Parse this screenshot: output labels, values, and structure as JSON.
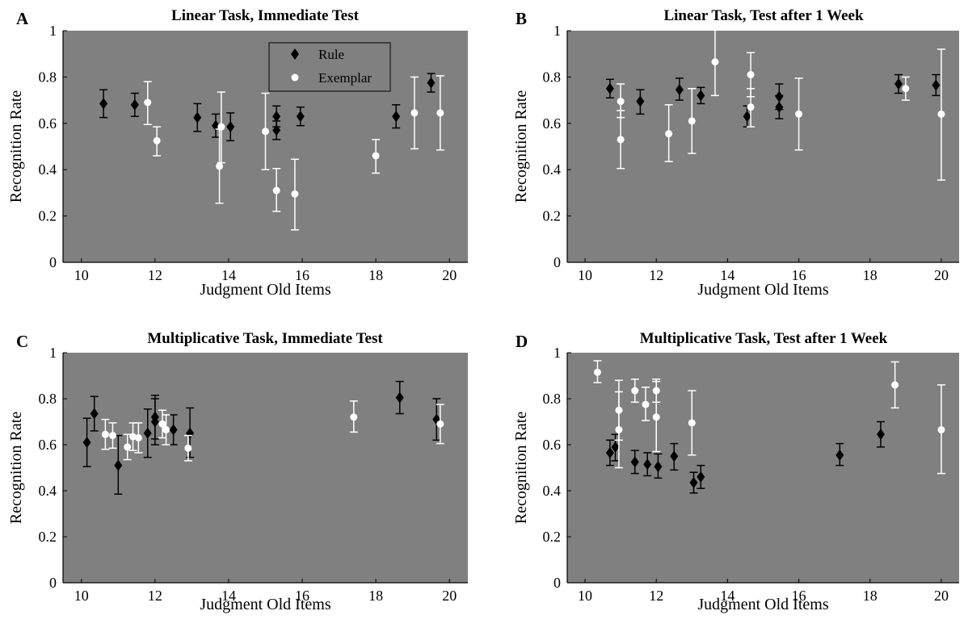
{
  "figure": {
    "legend": {
      "rule": "Rule",
      "exemplar": "Exemplar"
    },
    "legend_colors": {
      "rule": "#000000",
      "exemplar": "#ffffff"
    },
    "plot_background": "#808080"
  },
  "chart_data": [
    {
      "type": "scatter",
      "panel_letter": "A",
      "title": "Linear Task, Immediate Test",
      "xlabel": "Judgment Old Items",
      "ylabel": "Recognition Rate",
      "xlim": [
        9.5,
        20.5
      ],
      "ylim": [
        0,
        1
      ],
      "xticks": [
        "10",
        "12",
        "14",
        "16",
        "18",
        "20"
      ],
      "yticks": [
        "0",
        "0.2",
        "0.4",
        "0.6",
        "0.8",
        "1"
      ],
      "legend_position": "top-center",
      "grid": false,
      "series": [
        {
          "name": "Rule",
          "marker": "diamond",
          "color": "#000000",
          "points": [
            {
              "x": 10.6,
              "y": 0.685,
              "lo": 0.625,
              "hi": 0.745
            },
            {
              "x": 11.45,
              "y": 0.68,
              "lo": 0.63,
              "hi": 0.73
            },
            {
              "x": 13.15,
              "y": 0.625,
              "lo": 0.565,
              "hi": 0.685
            },
            {
              "x": 13.65,
              "y": 0.59,
              "lo": 0.54,
              "hi": 0.64
            },
            {
              "x": 14.05,
              "y": 0.585,
              "lo": 0.525,
              "hi": 0.645
            },
            {
              "x": 15.3,
              "y": 0.63,
              "lo": 0.585,
              "hi": 0.675
            },
            {
              "x": 15.3,
              "y": 0.57,
              "lo": 0.53,
              "hi": 0.61
            },
            {
              "x": 15.95,
              "y": 0.63,
              "lo": 0.59,
              "hi": 0.67
            },
            {
              "x": 18.55,
              "y": 0.63,
              "lo": 0.58,
              "hi": 0.68
            },
            {
              "x": 19.5,
              "y": 0.775,
              "lo": 0.735,
              "hi": 0.815
            }
          ]
        },
        {
          "name": "Exemplar",
          "marker": "circle",
          "color": "#ffffff",
          "points": [
            {
              "x": 11.8,
              "y": 0.69,
              "lo": 0.595,
              "hi": 0.78
            },
            {
              "x": 12.05,
              "y": 0.525,
              "lo": 0.46,
              "hi": 0.585
            },
            {
              "x": 13.8,
              "y": 0.585,
              "lo": 0.43,
              "hi": 0.735
            },
            {
              "x": 13.75,
              "y": 0.415,
              "lo": 0.255,
              "hi": 0.575
            },
            {
              "x": 15.0,
              "y": 0.565,
              "lo": 0.4,
              "hi": 0.73
            },
            {
              "x": 15.3,
              "y": 0.31,
              "lo": 0.22,
              "hi": 0.405
            },
            {
              "x": 15.8,
              "y": 0.295,
              "lo": 0.14,
              "hi": 0.445
            },
            {
              "x": 18.0,
              "y": 0.46,
              "lo": 0.385,
              "hi": 0.53
            },
            {
              "x": 19.05,
              "y": 0.645,
              "lo": 0.49,
              "hi": 0.8
            },
            {
              "x": 19.75,
              "y": 0.645,
              "lo": 0.485,
              "hi": 0.805
            }
          ]
        }
      ]
    },
    {
      "type": "scatter",
      "panel_letter": "B",
      "title": "Linear Task, Test after 1 Week",
      "xlabel": "Judgment Old Items",
      "ylabel": "Recognition Rate",
      "xlim": [
        9.5,
        20.5
      ],
      "ylim": [
        0,
        1
      ],
      "xticks": [
        "10",
        "12",
        "14",
        "16",
        "18",
        "20"
      ],
      "yticks": [
        "0",
        "0.2",
        "0.4",
        "0.6",
        "0.8",
        "1"
      ],
      "grid": false,
      "series": [
        {
          "name": "Rule",
          "marker": "diamond",
          "color": "#000000",
          "points": [
            {
              "x": 10.7,
              "y": 0.75,
              "lo": 0.71,
              "hi": 0.79
            },
            {
              "x": 11.55,
              "y": 0.695,
              "lo": 0.64,
              "hi": 0.745
            },
            {
              "x": 12.65,
              "y": 0.745,
              "lo": 0.7,
              "hi": 0.795
            },
            {
              "x": 13.25,
              "y": 0.72,
              "lo": 0.685,
              "hi": 0.755
            },
            {
              "x": 14.55,
              "y": 0.63,
              "lo": 0.585,
              "hi": 0.675
            },
            {
              "x": 15.45,
              "y": 0.715,
              "lo": 0.66,
              "hi": 0.77
            },
            {
              "x": 15.45,
              "y": 0.67,
              "lo": 0.62,
              "hi": 0.72
            },
            {
              "x": 18.8,
              "y": 0.77,
              "lo": 0.73,
              "hi": 0.81
            },
            {
              "x": 19.85,
              "y": 0.765,
              "lo": 0.72,
              "hi": 0.81
            }
          ]
        },
        {
          "name": "Exemplar",
          "marker": "circle",
          "color": "#ffffff",
          "points": [
            {
              "x": 11.0,
              "y": 0.695,
              "lo": 0.625,
              "hi": 0.77
            },
            {
              "x": 11.0,
              "y": 0.53,
              "lo": 0.405,
              "hi": 0.655
            },
            {
              "x": 12.35,
              "y": 0.555,
              "lo": 0.435,
              "hi": 0.68
            },
            {
              "x": 13.0,
              "y": 0.61,
              "lo": 0.47,
              "hi": 0.75
            },
            {
              "x": 13.65,
              "y": 0.865,
              "lo": 0.72,
              "hi": 1.01
            },
            {
              "x": 14.65,
              "y": 0.81,
              "lo": 0.715,
              "hi": 0.905
            },
            {
              "x": 14.65,
              "y": 0.67,
              "lo": 0.585,
              "hi": 0.75
            },
            {
              "x": 16.0,
              "y": 0.64,
              "lo": 0.485,
              "hi": 0.795
            },
            {
              "x": 19.0,
              "y": 0.75,
              "lo": 0.7,
              "hi": 0.8
            },
            {
              "x": 20.0,
              "y": 0.64,
              "lo": 0.355,
              "hi": 0.92
            }
          ]
        }
      ]
    },
    {
      "type": "scatter",
      "panel_letter": "C",
      "title": "Multiplicative Task, Immediate Test",
      "xlabel": "Judgment Old Items",
      "ylabel": "Recognition Rate",
      "xlim": [
        9.5,
        20.5
      ],
      "ylim": [
        0,
        1
      ],
      "xticks": [
        "10",
        "12",
        "14",
        "16",
        "18",
        "20"
      ],
      "yticks": [
        "0",
        "0.2",
        "0.4",
        "0.6",
        "0.8",
        "1"
      ],
      "grid": false,
      "series": [
        {
          "name": "Rule",
          "marker": "diamond",
          "color": "#000000",
          "points": [
            {
              "x": 10.15,
              "y": 0.61,
              "lo": 0.505,
              "hi": 0.715
            },
            {
              "x": 10.35,
              "y": 0.735,
              "lo": 0.66,
              "hi": 0.81
            },
            {
              "x": 11.0,
              "y": 0.51,
              "lo": 0.385,
              "hi": 0.64
            },
            {
              "x": 11.8,
              "y": 0.65,
              "lo": 0.545,
              "hi": 0.755
            },
            {
              "x": 12.0,
              "y": 0.72,
              "lo": 0.625,
              "hi": 0.815
            },
            {
              "x": 12.0,
              "y": 0.7,
              "lo": 0.6,
              "hi": 0.8
            },
            {
              "x": 12.5,
              "y": 0.665,
              "lo": 0.6,
              "hi": 0.73
            },
            {
              "x": 12.95,
              "y": 0.65,
              "lo": 0.545,
              "hi": 0.76
            },
            {
              "x": 18.65,
              "y": 0.805,
              "lo": 0.735,
              "hi": 0.875
            },
            {
              "x": 19.65,
              "y": 0.71,
              "lo": 0.62,
              "hi": 0.8
            }
          ]
        },
        {
          "name": "Exemplar",
          "marker": "circle",
          "color": "#ffffff",
          "points": [
            {
              "x": 10.65,
              "y": 0.645,
              "lo": 0.58,
              "hi": 0.71
            },
            {
              "x": 10.85,
              "y": 0.64,
              "lo": 0.585,
              "hi": 0.695
            },
            {
              "x": 11.25,
              "y": 0.59,
              "lo": 0.535,
              "hi": 0.645
            },
            {
              "x": 11.4,
              "y": 0.635,
              "lo": 0.575,
              "hi": 0.695
            },
            {
              "x": 11.55,
              "y": 0.63,
              "lo": 0.565,
              "hi": 0.695
            },
            {
              "x": 12.2,
              "y": 0.69,
              "lo": 0.63,
              "hi": 0.75
            },
            {
              "x": 12.3,
              "y": 0.665,
              "lo": 0.6,
              "hi": 0.73
            },
            {
              "x": 12.9,
              "y": 0.585,
              "lo": 0.53,
              "hi": 0.64
            },
            {
              "x": 17.4,
              "y": 0.72,
              "lo": 0.655,
              "hi": 0.79
            },
            {
              "x": 19.75,
              "y": 0.69,
              "lo": 0.605,
              "hi": 0.775
            }
          ]
        }
      ]
    },
    {
      "type": "scatter",
      "panel_letter": "D",
      "title": "Multiplicative Task, Test after 1 Week",
      "xlabel": "Judgment Old Items",
      "ylabel": "Recognition Rate",
      "xlim": [
        9.5,
        20.5
      ],
      "ylim": [
        0,
        1
      ],
      "xticks": [
        "10",
        "12",
        "14",
        "16",
        "18",
        "20"
      ],
      "yticks": [
        "0",
        "0.2",
        "0.4",
        "0.6",
        "0.8",
        "1"
      ],
      "grid": false,
      "series": [
        {
          "name": "Rule",
          "marker": "diamond",
          "color": "#000000",
          "points": [
            {
              "x": 10.7,
              "y": 0.565,
              "lo": 0.51,
              "hi": 0.62
            },
            {
              "x": 10.85,
              "y": 0.59,
              "lo": 0.53,
              "hi": 0.645
            },
            {
              "x": 11.4,
              "y": 0.525,
              "lo": 0.475,
              "hi": 0.575
            },
            {
              "x": 11.75,
              "y": 0.515,
              "lo": 0.465,
              "hi": 0.565
            },
            {
              "x": 12.05,
              "y": 0.505,
              "lo": 0.455,
              "hi": 0.56
            },
            {
              "x": 12.5,
              "y": 0.55,
              "lo": 0.49,
              "hi": 0.605
            },
            {
              "x": 13.05,
              "y": 0.435,
              "lo": 0.39,
              "hi": 0.48
            },
            {
              "x": 13.25,
              "y": 0.46,
              "lo": 0.41,
              "hi": 0.51
            },
            {
              "x": 17.15,
              "y": 0.555,
              "lo": 0.51,
              "hi": 0.605
            },
            {
              "x": 18.3,
              "y": 0.645,
              "lo": 0.59,
              "hi": 0.7
            }
          ]
        },
        {
          "name": "Exemplar",
          "marker": "circle",
          "color": "#ffffff",
          "points": [
            {
              "x": 10.35,
              "y": 0.915,
              "lo": 0.87,
              "hi": 0.965
            },
            {
              "x": 10.95,
              "y": 0.75,
              "lo": 0.62,
              "hi": 0.88
            },
            {
              "x": 10.95,
              "y": 0.665,
              "lo": 0.5,
              "hi": 0.83
            },
            {
              "x": 11.4,
              "y": 0.835,
              "lo": 0.785,
              "hi": 0.885
            },
            {
              "x": 11.7,
              "y": 0.775,
              "lo": 0.705,
              "hi": 0.85
            },
            {
              "x": 12.0,
              "y": 0.835,
              "lo": 0.785,
              "hi": 0.885
            },
            {
              "x": 12.0,
              "y": 0.72,
              "lo": 0.57,
              "hi": 0.875
            },
            {
              "x": 13.0,
              "y": 0.695,
              "lo": 0.555,
              "hi": 0.835
            },
            {
              "x": 18.7,
              "y": 0.86,
              "lo": 0.76,
              "hi": 0.96
            },
            {
              "x": 20.0,
              "y": 0.665,
              "lo": 0.475,
              "hi": 0.86
            }
          ]
        }
      ]
    }
  ]
}
